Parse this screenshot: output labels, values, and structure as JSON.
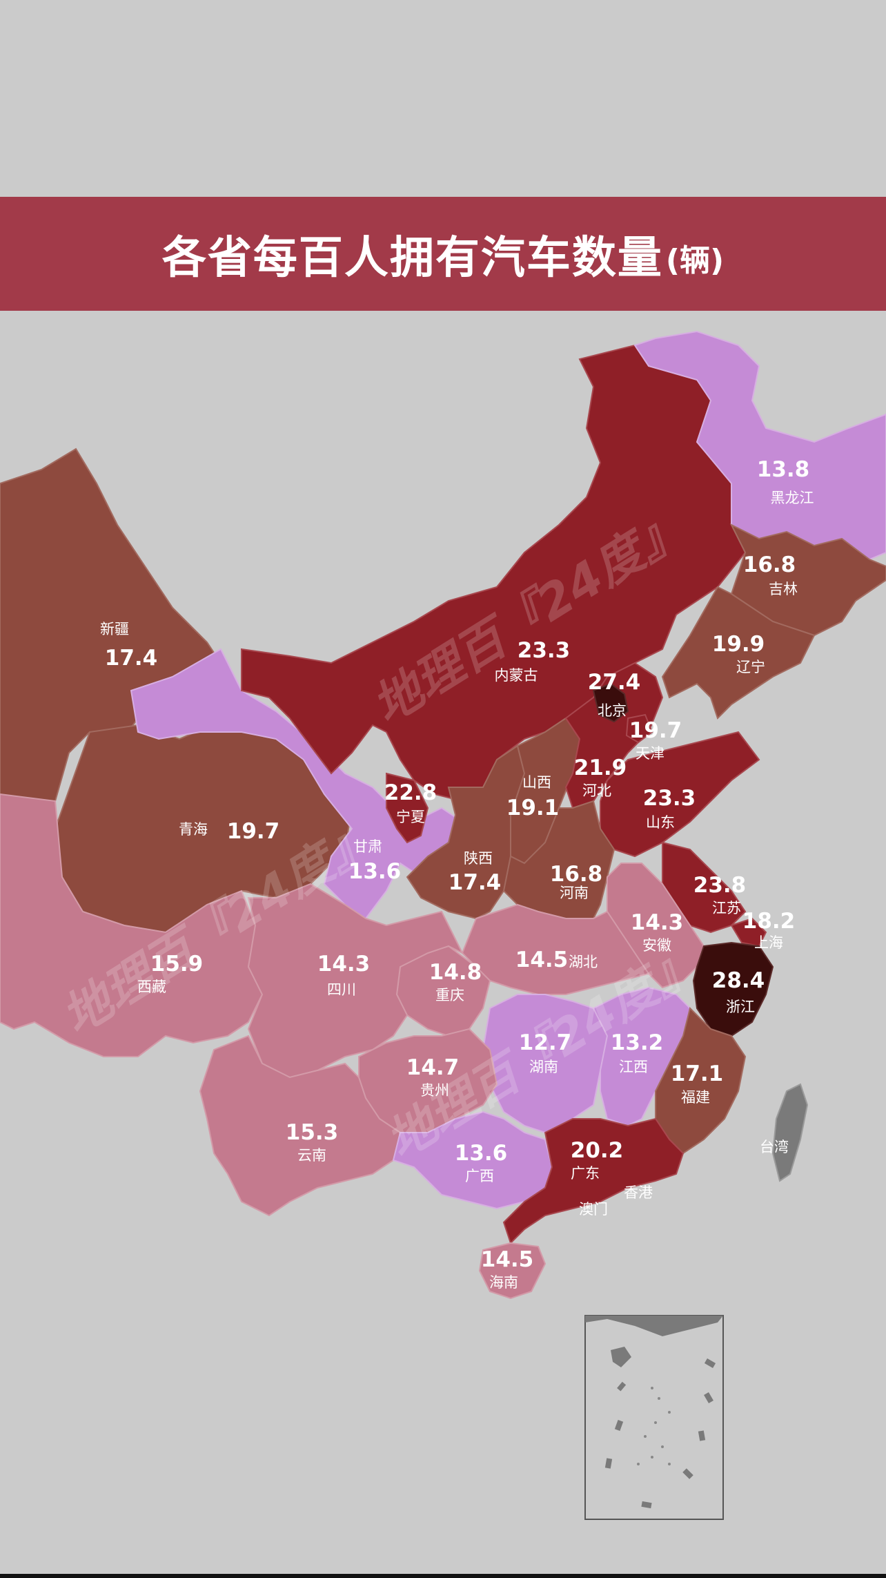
{
  "title": {
    "main": "各省每百人拥有汽车数量",
    "unit": "(辆)"
  },
  "watermark": "地理百『24度』",
  "colors": {
    "background": "#cbcbcb",
    "title_band": "#a23a49",
    "lowest": "#c58bd6",
    "low": "#c47a8e",
    "mid": "#8e4a3e",
    "high": "#8f1f27",
    "highest": "#3a0d0c"
  },
  "provinces": [
    {
      "id": "heilongjiang",
      "name": "黑龙江",
      "value": "13.8"
    },
    {
      "id": "jilin",
      "name": "吉林",
      "value": "16.8"
    },
    {
      "id": "liaoning",
      "name": "辽宁",
      "value": "19.9"
    },
    {
      "id": "neimenggu",
      "name": "内蒙古",
      "value": "23.3"
    },
    {
      "id": "beijing",
      "name": "北京",
      "value": "27.4"
    },
    {
      "id": "tianjin",
      "name": "天津",
      "value": "19.7"
    },
    {
      "id": "hebei",
      "name": "河北",
      "value": "21.9"
    },
    {
      "id": "shanxi",
      "name": "山西",
      "value": "19.1"
    },
    {
      "id": "shandong",
      "name": "山东",
      "value": "23.3"
    },
    {
      "id": "xinjiang",
      "name": "新疆",
      "value": "17.4"
    },
    {
      "id": "qinghai",
      "name": "青海",
      "value": "19.7"
    },
    {
      "id": "ningxia",
      "name": "宁夏",
      "value": "22.8"
    },
    {
      "id": "gansu",
      "name": "甘肃",
      "value": "13.6"
    },
    {
      "id": "shaanxi",
      "name": "陕西",
      "value": "17.4"
    },
    {
      "id": "henan",
      "name": "河南",
      "value": "16.8"
    },
    {
      "id": "jiangsu",
      "name": "江苏",
      "value": "23.8"
    },
    {
      "id": "shanghai",
      "name": "上海",
      "value": "18.2"
    },
    {
      "id": "anhui",
      "name": "安徽",
      "value": "14.3"
    },
    {
      "id": "zhejiang",
      "name": "浙江",
      "value": "28.4"
    },
    {
      "id": "xizang",
      "name": "西藏",
      "value": "15.9"
    },
    {
      "id": "sichuan",
      "name": "四川",
      "value": "14.3"
    },
    {
      "id": "chongqing",
      "name": "重庆",
      "value": "14.8"
    },
    {
      "id": "hubei",
      "name": "湖北",
      "value": "14.5"
    },
    {
      "id": "hunan",
      "name": "湖南",
      "value": "12.7"
    },
    {
      "id": "jiangxi",
      "name": "江西",
      "value": "13.2"
    },
    {
      "id": "fujian",
      "name": "福建",
      "value": "17.1"
    },
    {
      "id": "guizhou",
      "name": "贵州",
      "value": "14.7"
    },
    {
      "id": "yunnan",
      "name": "云南",
      "value": "15.3"
    },
    {
      "id": "guangxi",
      "name": "广西",
      "value": "13.6"
    },
    {
      "id": "guangdong",
      "name": "广东",
      "value": "20.2"
    },
    {
      "id": "hainan",
      "name": "海南",
      "value": "14.5"
    }
  ],
  "other_labels": {
    "taiwan": "台湾",
    "hongkong": "香港",
    "macau": "澳门"
  }
}
